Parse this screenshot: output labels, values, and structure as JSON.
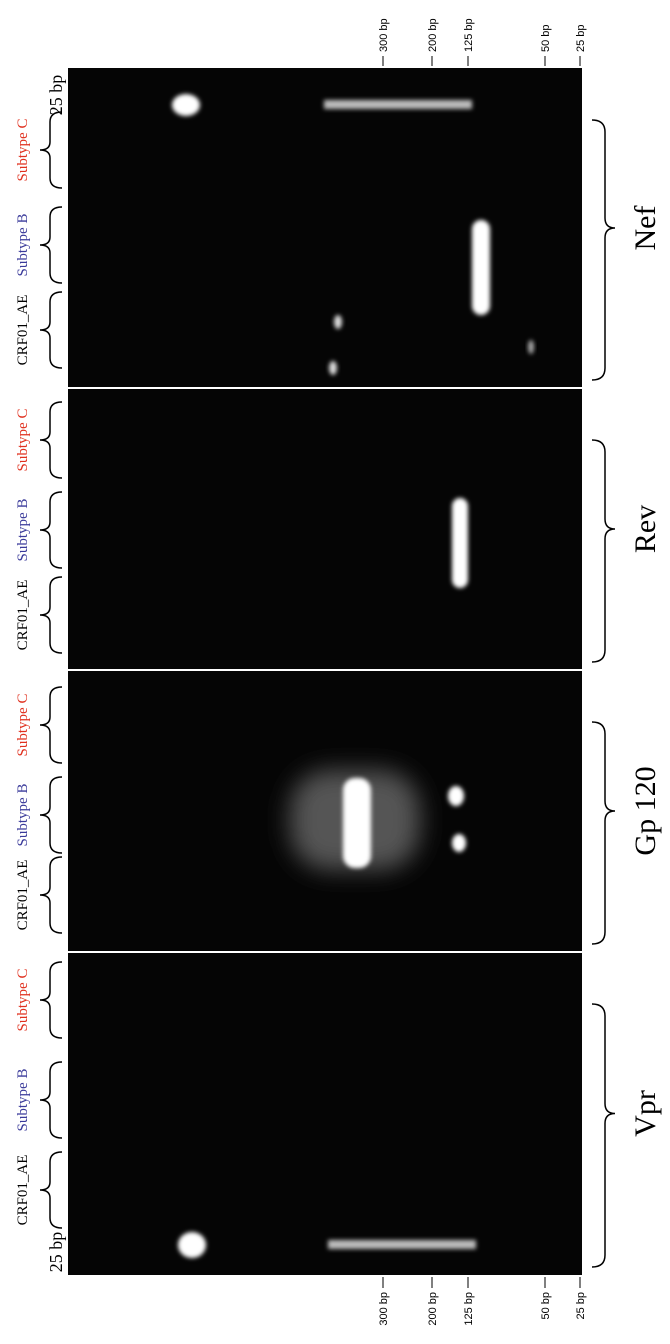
{
  "top_markers": [
    "300 bp",
    "200 bp",
    "125 bp",
    "50 bp",
    "25 bp"
  ],
  "bottom_markers": [
    "300 bp",
    "200 bp",
    "125 bp",
    "50 bp",
    "25 bp"
  ],
  "ladder_labels": [
    "25 bp",
    "25 bp"
  ],
  "panels": [
    {
      "gene": "Nef",
      "lanes": [
        "Subtype C",
        "Subtype B",
        "CRF01_AE"
      ]
    },
    {
      "gene": "Rev",
      "lanes": [
        "Subtype C",
        "Subtype B",
        "CRF01_AE"
      ]
    },
    {
      "gene": "Gp 120",
      "lanes": [
        "Subtype C",
        "Subtype B",
        "CRF01_AE"
      ]
    },
    {
      "gene": "Vpr",
      "lanes": [
        "Subtype C",
        "Subtype B",
        "CRF01_AE"
      ]
    }
  ]
}
